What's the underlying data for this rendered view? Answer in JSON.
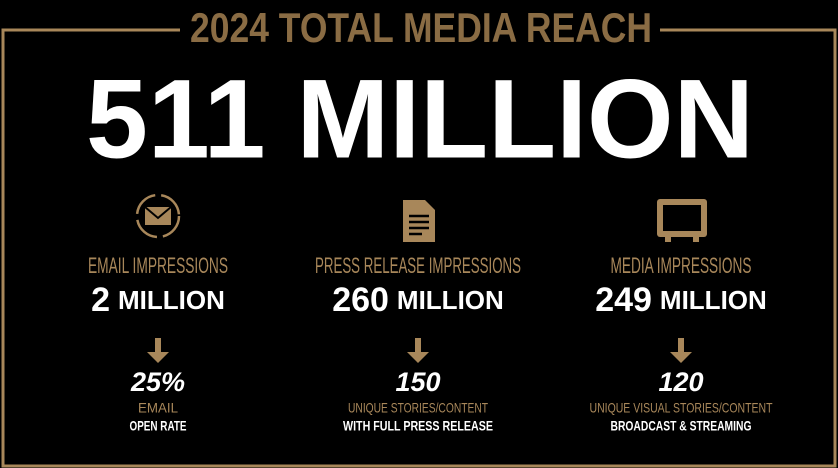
{
  "header": {
    "title": "2024 TOTAL MEDIA REACH",
    "total": "511 MILLION"
  },
  "columns": [
    {
      "label": "EMAIL IMPRESSIONS",
      "number": "2",
      "unit": "MILLION",
      "stat": "25%",
      "stat_label": "EMAIL",
      "stat_note": "OPEN RATE"
    },
    {
      "label": "PRESS RELEASE IMPRESSIONS",
      "number": "260",
      "unit": "MILLION",
      "stat": "150",
      "stat_label": "UNIQUE STORIES/CONTENT",
      "stat_note": "WITH FULL PRESS RELEASE"
    },
    {
      "label": "MEDIA IMPRESSIONS",
      "number": "249",
      "unit": "MILLION",
      "stat": "120",
      "stat_label": "UNIQUE VISUAL STORIES/CONTENT",
      "stat_note": "BROADCAST & STREAMING"
    }
  ]
}
